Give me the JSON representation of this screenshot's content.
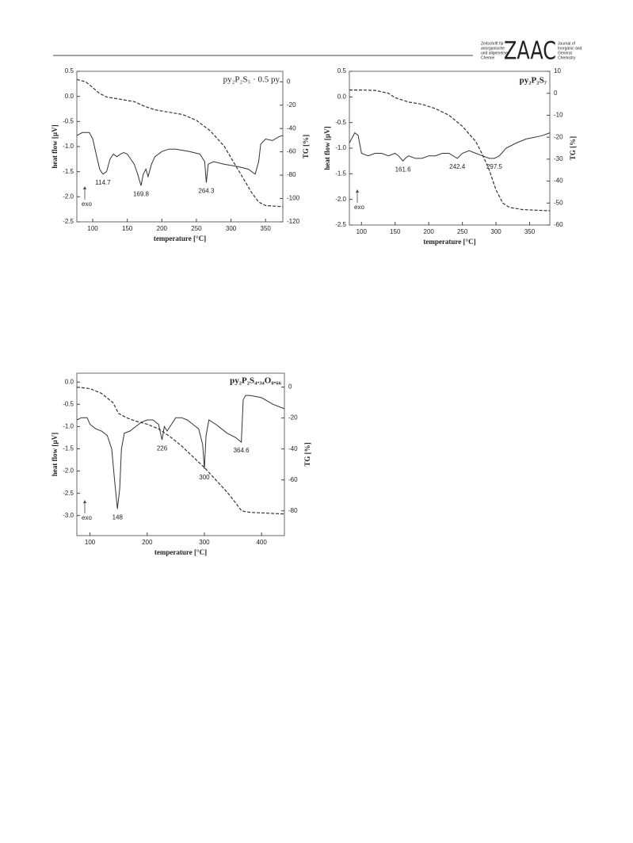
{
  "header": {
    "journal_de": [
      "Zeitschrift für",
      "anorganische",
      "und allgemeine",
      "Chemie"
    ],
    "logo": "ZAAC",
    "journal_en": [
      "Journal of",
      "Inorganic and",
      "General",
      "Chemistry"
    ]
  },
  "chart_data": [
    {
      "type": "line",
      "title": "py₂P₂S₅ · 0.5 py",
      "xlabel": "temperature [°C]",
      "ylabel": "heat flow [µV]",
      "y2label": "TG [%]",
      "annotation": "exo",
      "peaks": [
        114.7,
        169.8,
        264.3
      ],
      "xlim": [
        77,
        375
      ],
      "xticks": [
        100,
        150,
        200,
        250,
        300,
        350
      ],
      "ylim": [
        -2.5,
        0.5
      ],
      "yticks": [
        0.5,
        {
          "value": 0,
          "label": "0.0"
        },
        -0.5,
        {
          "value": -1,
          "label": "-1.0"
        },
        -1.5,
        {
          "value": -2,
          "label": "-2.0"
        },
        -2.5
      ],
      "y2lim": [
        -120,
        9
      ],
      "y2ticks": [
        0,
        -20,
        -40,
        -60,
        -80,
        -100,
        -120
      ],
      "series": [
        {
          "color": "#333333",
          "dashed": false,
          "x": [
            77,
            85,
            95,
            100,
            105,
            110,
            114.7,
            120,
            125,
            130,
            135,
            140,
            145,
            150,
            160,
            165,
            169.8,
            173,
            177,
            180,
            185,
            190,
            200,
            210,
            220,
            240,
            255,
            262,
            264.3,
            267,
            275,
            290,
            310,
            325,
            335,
            340,
            343,
            350,
            360,
            370,
            375
          ],
          "values": [
            -0.78,
            -0.72,
            -0.72,
            -0.85,
            -1.15,
            -1.45,
            -1.55,
            -1.5,
            -1.25,
            -1.15,
            -1.2,
            -1.15,
            -1.12,
            -1.15,
            -1.35,
            -1.55,
            -1.78,
            -1.55,
            -1.45,
            -1.6,
            -1.35,
            -1.2,
            -1.1,
            -1.05,
            -1.05,
            -1.1,
            -1.15,
            -1.3,
            -1.72,
            -1.35,
            -1.3,
            -1.35,
            -1.4,
            -1.45,
            -1.55,
            -1.3,
            -0.95,
            -0.85,
            -0.88,
            -0.8,
            -0.78
          ]
        },
        {
          "color": "#333333",
          "dashed": true,
          "axis": "y2",
          "x": [
            77,
            90,
            100,
            110,
            120,
            140,
            160,
            175,
            190,
            210,
            230,
            250,
            270,
            290,
            305,
            320,
            330,
            340,
            350,
            375
          ],
          "values": [
            2,
            0,
            -5,
            -10,
            -13,
            -15,
            -17,
            -21,
            -24,
            -26,
            -28,
            -33,
            -42,
            -55,
            -70,
            -85,
            -95,
            -103,
            -106,
            -107
          ]
        }
      ]
    },
    {
      "type": "line",
      "title": "py₂P₂S₇",
      "xlabel": "temperature [°C]",
      "ylabel": "heat flow [µV]",
      "y2label": "TG [%]",
      "annotation": "exo",
      "peaks": [
        161.6,
        242.4,
        297.5
      ],
      "xlim": [
        82,
        380
      ],
      "xticks": [
        100,
        150,
        200,
        250,
        300,
        350
      ],
      "ylim": [
        -2.5,
        0.5
      ],
      "yticks": [
        0.5,
        {
          "value": 0,
          "label": "0.0"
        },
        -0.5,
        {
          "value": -1,
          "label": "-1.0"
        },
        -1.5,
        {
          "value": -2,
          "label": "-2.0"
        },
        -2.5
      ],
      "y2lim": [
        -60,
        10
      ],
      "y2ticks": [
        10,
        0,
        -10,
        -20,
        -30,
        -40,
        -50,
        -60
      ],
      "series": [
        {
          "color": "#333333",
          "dashed": false,
          "x": [
            82,
            90,
            95,
            100,
            110,
            120,
            130,
            140,
            150,
            155,
            161.6,
            165,
            170,
            180,
            190,
            200,
            210,
            220,
            230,
            242.4,
            250,
            260,
            270,
            280,
            290,
            297.5,
            305,
            315,
            330,
            345,
            360,
            370,
            380
          ],
          "values": [
            -0.9,
            -0.7,
            -0.75,
            -1.1,
            -1.15,
            -1.1,
            -1.1,
            -1.15,
            -1.1,
            -1.15,
            -1.25,
            -1.2,
            -1.15,
            -1.2,
            -1.2,
            -1.15,
            -1.15,
            -1.1,
            -1.1,
            -1.2,
            -1.1,
            -1.05,
            -1.1,
            -1.15,
            -1.2,
            -1.2,
            -1.15,
            -1.0,
            -0.9,
            -0.82,
            -0.78,
            -0.75,
            -0.7
          ]
        },
        {
          "color": "#333333",
          "dashed": true,
          "axis": "y2",
          "x": [
            82,
            100,
            120,
            140,
            150,
            170,
            190,
            210,
            230,
            250,
            270,
            280,
            290,
            300,
            310,
            320,
            340,
            380
          ],
          "values": [
            1.5,
            1.5,
            1.3,
            0,
            -2,
            -4,
            -5,
            -7,
            -10,
            -15,
            -22,
            -28,
            -35,
            -44,
            -50,
            -52,
            -53,
            -53.5
          ]
        }
      ]
    },
    {
      "type": "line",
      "title": "py₂P₂S₄.₃₄O₀.₆₆",
      "xlabel": "temperature [°C]",
      "ylabel": "heat flow [µV]",
      "y2label": "TG [%]",
      "annotation": "exo",
      "peaks": [
        148,
        226,
        300,
        364.6
      ],
      "xlim": [
        77,
        440
      ],
      "xticks": [
        100,
        200,
        300,
        400
      ],
      "ylim": [
        -3.45,
        0.2
      ],
      "yticks": [
        {
          "value": 0,
          "label": "0.0"
        },
        -0.5,
        {
          "value": -1,
          "label": "-1.0"
        },
        -1.5,
        {
          "value": -2,
          "label": "-2.0"
        },
        -2.5,
        {
          "value": -3,
          "label": "-3.0"
        }
      ],
      "y2lim": [
        -96,
        9
      ],
      "y2ticks": [
        0,
        -20,
        -40,
        -60,
        -80
      ],
      "series": [
        {
          "color": "#333333",
          "dashed": false,
          "x": [
            77,
            85,
            95,
            100,
            110,
            120,
            130,
            138,
            143,
            148,
            152,
            155,
            160,
            170,
            180,
            190,
            200,
            210,
            220,
            226,
            230,
            235,
            240,
            250,
            260,
            270,
            280,
            290,
            297,
            300,
            303,
            308,
            320,
            330,
            340,
            355,
            364.6,
            368,
            372,
            380,
            400,
            420,
            440
          ],
          "values": [
            -0.85,
            -0.8,
            -0.8,
            -0.95,
            -1.05,
            -1.1,
            -1.2,
            -1.5,
            -2.2,
            -2.85,
            -2.4,
            -1.5,
            -1.15,
            -1.1,
            -1.0,
            -0.9,
            -0.85,
            -0.85,
            -0.95,
            -1.3,
            -1.0,
            -1.1,
            -1.0,
            -0.8,
            -0.8,
            -0.85,
            -0.95,
            -1.05,
            -1.4,
            -1.95,
            -1.2,
            -0.85,
            -0.95,
            -1.05,
            -1.15,
            -1.25,
            -1.35,
            -0.4,
            -0.3,
            -0.3,
            -0.35,
            -0.5,
            -0.6
          ]
        },
        {
          "color": "#333333",
          "dashed": true,
          "axis": "y2",
          "x": [
            77,
            100,
            120,
            140,
            150,
            165,
            180,
            200,
            220,
            240,
            260,
            280,
            300,
            320,
            340,
            355,
            365,
            380,
            440
          ],
          "values": [
            0,
            -1,
            -4,
            -10,
            -17,
            -20,
            -22,
            -24,
            -27,
            -32,
            -38,
            -45,
            -52,
            -60,
            -68,
            -75,
            -80,
            -81,
            -82
          ]
        }
      ]
    }
  ]
}
